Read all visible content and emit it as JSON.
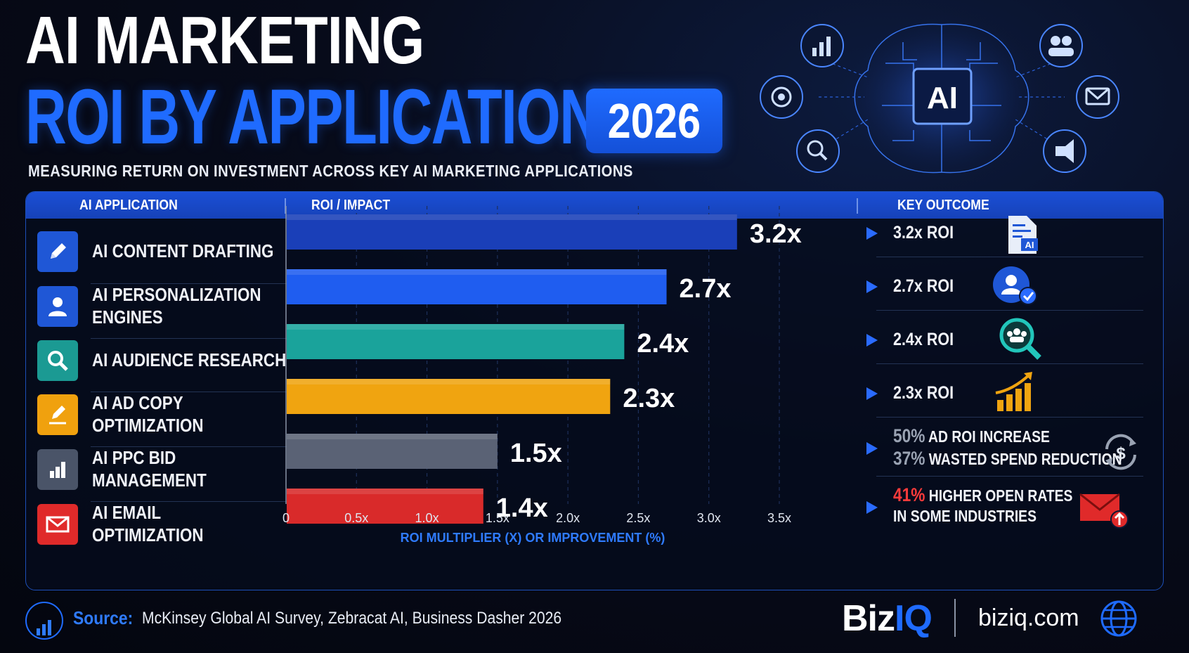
{
  "header": {
    "title_line1": "AI MARKETING",
    "title_line2": "ROI BY APPLICATION",
    "year": "2026",
    "subtitle": "MEASURING RETURN ON INVESTMENT ACROSS KEY AI MARKETING APPLICATIONS"
  },
  "brain": {
    "center_label": "AI",
    "icons": [
      "bar-chart-icon",
      "target-icon",
      "search-icon",
      "users-icon",
      "mail-icon",
      "megaphone-icon"
    ]
  },
  "table_headers": {
    "application": "AI APPLICATION",
    "roi": "ROI / IMPACT",
    "outcome": "KEY OUTCOME"
  },
  "applications": [
    {
      "label": "AI CONTENT DRAFTING",
      "icon": "pencil-icon",
      "color": "#1f57d6"
    },
    {
      "label": "AI PERSONALIZATION ENGINES",
      "icon": "user-icon",
      "color": "#1f57d6"
    },
    {
      "label": "AI AUDIENCE RESEARCH",
      "icon": "search-icon",
      "color": "#1b9a93"
    },
    {
      "label": "AI AD COPY OPTIMIZATION",
      "icon": "edit-icon",
      "color": "#f0a10e"
    },
    {
      "label": "AI PPC BID MANAGEMENT",
      "icon": "bar-chart-icon",
      "color": "#4a5468"
    },
    {
      "label": "AI EMAIL OPTIMIZATION",
      "icon": "envelope-icon",
      "color": "#e02a2a"
    }
  ],
  "outcomes": [
    {
      "text": "3.2x ROI",
      "icon": "document-ai-icon"
    },
    {
      "text": "2.7x ROI",
      "icon": "user-check-icon"
    },
    {
      "text": "2.4x ROI",
      "icon": "audience-search-icon"
    },
    {
      "text": "2.3x ROI",
      "icon": "growth-chart-icon"
    },
    {
      "line1_pct": "50%",
      "line1_text": "AD ROI INCREASE",
      "line2_pct": "37%",
      "line2_text": "WASTED SPEND REDUCTION",
      "icon": "dollar-cycle-icon"
    },
    {
      "line1_pct": "41%",
      "line1_text": "HIGHER OPEN RATES",
      "line2_text": "IN SOME INDUSTRIES",
      "icon": "mail-up-icon"
    }
  ],
  "chart_data": {
    "type": "bar",
    "orientation": "horizontal",
    "categories": [
      "AI CONTENT DRAFTING",
      "AI PERSONALIZATION ENGINES",
      "AI AUDIENCE RESEARCH",
      "AI AD COPY OPTIMIZATION",
      "AI PPC BID MANAGEMENT",
      "AI EMAIL OPTIMIZATION"
    ],
    "values": [
      3.2,
      2.7,
      2.4,
      2.3,
      1.5,
      1.4
    ],
    "data_labels": [
      "3.2x",
      "2.7x",
      "2.4x",
      "2.3x",
      "1.5x",
      "1.4x"
    ],
    "bar_colors": [
      "#1a3fb8",
      "#1f5df0",
      "#1aa39b",
      "#f0a410",
      "#5a6275",
      "#d92a2a"
    ],
    "xlabel": "ROI MULTIPLIER (X) OR IMPROVEMENT (%)",
    "xticks": [
      "0",
      "0.5x",
      "1.0x",
      "1.5x",
      "2.0x",
      "2.5x",
      "3.0x",
      "3.5x"
    ],
    "xlim": [
      0,
      3.5
    ],
    "grid": "vertical dashed"
  },
  "footer": {
    "source_label": "Source:",
    "source_text": "McKinsey Global AI Survey, Zebracat AI, Business Dasher 2026",
    "brand_part1": "Biz",
    "brand_part2": "IQ",
    "site": "biziq.com"
  }
}
